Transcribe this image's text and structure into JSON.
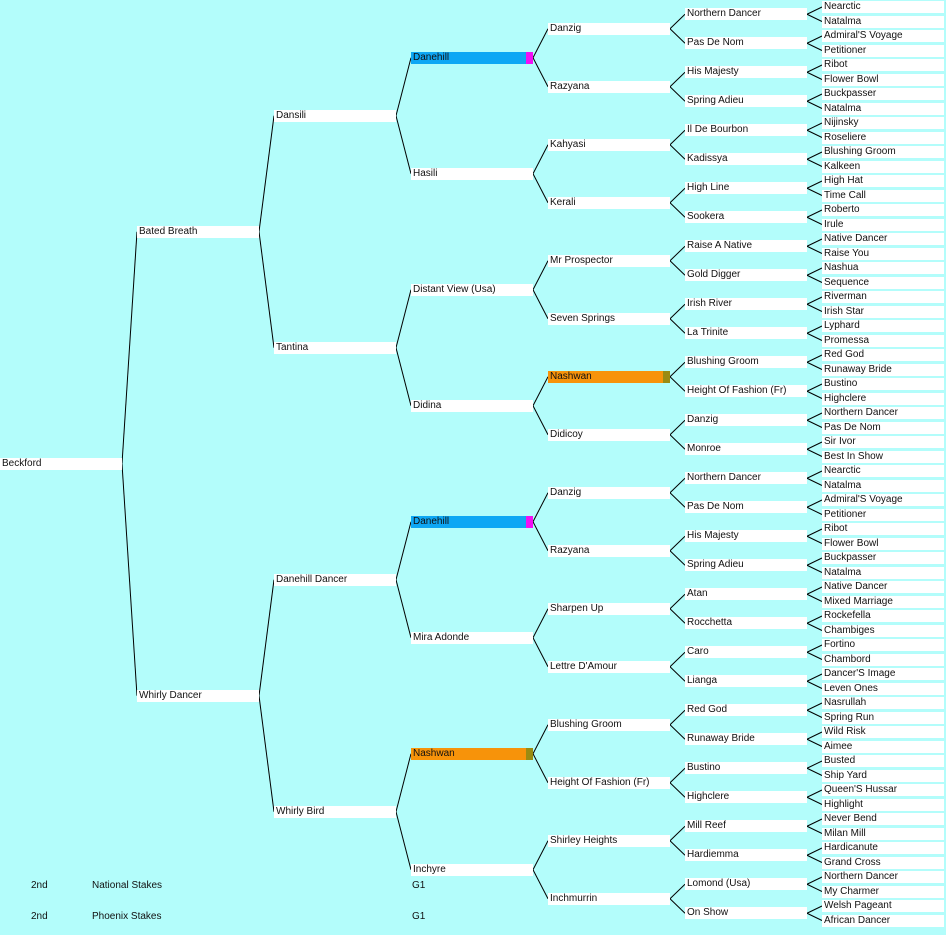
{
  "colors": {
    "background": "#b3fdfb",
    "node": "#ffffff",
    "highlight_danehill": "#0ea7f4",
    "marker_danehill": "#f20ef4",
    "highlight_nashwan": "#f7930a",
    "marker_nashwan": "#9a8b12",
    "line": "#000000"
  },
  "pedigree": {
    "name": "Beckford",
    "sire": {
      "name": "Bated Breath",
      "sire": {
        "name": "Dansili",
        "sire": {
          "name": "Danehill",
          "highlight": "blue",
          "sire": {
            "name": "Danzig",
            "sire": {
              "name": "Northern Dancer",
              "sire": {
                "name": "Nearctic"
              },
              "dam": {
                "name": "Natalma"
              }
            },
            "dam": {
              "name": "Pas De Nom",
              "sire": {
                "name": "Admiral'S Voyage"
              },
              "dam": {
                "name": "Petitioner"
              }
            }
          },
          "dam": {
            "name": "Razyana",
            "sire": {
              "name": "His Majesty",
              "sire": {
                "name": "Ribot"
              },
              "dam": {
                "name": "Flower Bowl"
              }
            },
            "dam": {
              "name": "Spring Adieu",
              "sire": {
                "name": "Buckpasser"
              },
              "dam": {
                "name": "Natalma"
              }
            }
          }
        },
        "dam": {
          "name": "Hasili",
          "sire": {
            "name": "Kahyasi",
            "sire": {
              "name": "Il De Bourbon",
              "sire": {
                "name": "Nijinsky"
              },
              "dam": {
                "name": "Roseliere"
              }
            },
            "dam": {
              "name": "Kadissya",
              "sire": {
                "name": "Blushing Groom"
              },
              "dam": {
                "name": "Kalkeen"
              }
            }
          },
          "dam": {
            "name": "Kerali",
            "sire": {
              "name": "High Line",
              "sire": {
                "name": "High Hat"
              },
              "dam": {
                "name": "Time Call"
              }
            },
            "dam": {
              "name": "Sookera",
              "sire": {
                "name": "Roberto"
              },
              "dam": {
                "name": "Irule"
              }
            }
          }
        }
      },
      "dam": {
        "name": "Tantina",
        "sire": {
          "name": "Distant View (Usa)",
          "sire": {
            "name": "Mr Prospector",
            "sire": {
              "name": "Raise A Native",
              "sire": {
                "name": "Native Dancer"
              },
              "dam": {
                "name": "Raise You"
              }
            },
            "dam": {
              "name": "Gold Digger",
              "sire": {
                "name": "Nashua"
              },
              "dam": {
                "name": "Sequence"
              }
            }
          },
          "dam": {
            "name": "Seven Springs",
            "sire": {
              "name": "Irish River",
              "sire": {
                "name": "Riverman"
              },
              "dam": {
                "name": "Irish Star"
              }
            },
            "dam": {
              "name": "La Trinite",
              "sire": {
                "name": "Lyphard"
              },
              "dam": {
                "name": "Promessa"
              }
            }
          }
        },
        "dam": {
          "name": "Didina",
          "sire": {
            "name": "Nashwan",
            "highlight": "orange",
            "sire": {
              "name": "Blushing Groom",
              "sire": {
                "name": "Red God"
              },
              "dam": {
                "name": "Runaway Bride"
              }
            },
            "dam": {
              "name": "Height Of Fashion (Fr)",
              "sire": {
                "name": "Bustino"
              },
              "dam": {
                "name": "Highclere"
              }
            }
          },
          "dam": {
            "name": "Didicoy",
            "sire": {
              "name": "Danzig",
              "sire": {
                "name": "Northern Dancer"
              },
              "dam": {
                "name": "Pas De Nom"
              }
            },
            "dam": {
              "name": "Monroe",
              "sire": {
                "name": "Sir Ivor"
              },
              "dam": {
                "name": "Best In Show"
              }
            }
          }
        }
      }
    },
    "dam": {
      "name": "Whirly Dancer",
      "sire": {
        "name": "Danehill Dancer",
        "sire": {
          "name": "Danehill",
          "highlight": "blue",
          "sire": {
            "name": "Danzig",
            "sire": {
              "name": "Northern Dancer",
              "sire": {
                "name": "Nearctic"
              },
              "dam": {
                "name": "Natalma"
              }
            },
            "dam": {
              "name": "Pas De Nom",
              "sire": {
                "name": "Admiral'S Voyage"
              },
              "dam": {
                "name": "Petitioner"
              }
            }
          },
          "dam": {
            "name": "Razyana",
            "sire": {
              "name": "His Majesty",
              "sire": {
                "name": "Ribot"
              },
              "dam": {
                "name": "Flower Bowl"
              }
            },
            "dam": {
              "name": "Spring Adieu",
              "sire": {
                "name": "Buckpasser"
              },
              "dam": {
                "name": "Natalma"
              }
            }
          }
        },
        "dam": {
          "name": "Mira Adonde",
          "sire": {
            "name": "Sharpen Up",
            "sire": {
              "name": "Atan",
              "sire": {
                "name": "Native Dancer"
              },
              "dam": {
                "name": "Mixed Marriage"
              }
            },
            "dam": {
              "name": "Rocchetta",
              "sire": {
                "name": "Rockefella"
              },
              "dam": {
                "name": "Chambiges"
              }
            }
          },
          "dam": {
            "name": "Lettre D'Amour",
            "sire": {
              "name": "Caro",
              "sire": {
                "name": "Fortino"
              },
              "dam": {
                "name": "Chambord"
              }
            },
            "dam": {
              "name": "Lianga",
              "sire": {
                "name": "Dancer'S Image"
              },
              "dam": {
                "name": "Leven Ones"
              }
            }
          }
        }
      },
      "dam": {
        "name": "Whirly Bird",
        "sire": {
          "name": "Nashwan",
          "highlight": "orange",
          "sire": {
            "name": "Blushing Groom",
            "sire": {
              "name": "Red God",
              "sire": {
                "name": "Nasrullah"
              },
              "dam": {
                "name": "Spring Run"
              }
            },
            "dam": {
              "name": "Runaway Bride",
              "sire": {
                "name": "Wild Risk"
              },
              "dam": {
                "name": "Aimee"
              }
            }
          },
          "dam": {
            "name": "Height Of Fashion (Fr)",
            "sire": {
              "name": "Bustino",
              "sire": {
                "name": "Busted"
              },
              "dam": {
                "name": "Ship Yard"
              }
            },
            "dam": {
              "name": "Highclere",
              "sire": {
                "name": "Queen'S Hussar"
              },
              "dam": {
                "name": "Highlight"
              }
            }
          }
        },
        "dam": {
          "name": "Inchyre",
          "sire": {
            "name": "Shirley Heights",
            "sire": {
              "name": "Mill Reef",
              "sire": {
                "name": "Never Bend"
              },
              "dam": {
                "name": "Milan Mill"
              }
            },
            "dam": {
              "name": "Hardiemma",
              "sire": {
                "name": "Hardicanute"
              },
              "dam": {
                "name": "Grand Cross"
              }
            }
          },
          "dam": {
            "name": "Inchmurrin",
            "sire": {
              "name": "Lomond (Usa)",
              "sire": {
                "name": "Northern Dancer"
              },
              "dam": {
                "name": "My Charmer"
              }
            },
            "dam": {
              "name": "On Show",
              "sire": {
                "name": "Welsh Pageant"
              },
              "dam": {
                "name": "African Dancer"
              }
            }
          }
        }
      }
    }
  },
  "race_results": [
    {
      "position": "2nd",
      "race": "National Stakes",
      "grade": "G1"
    },
    {
      "position": "2nd",
      "race": "Phoenix Stakes",
      "grade": "G1"
    }
  ]
}
